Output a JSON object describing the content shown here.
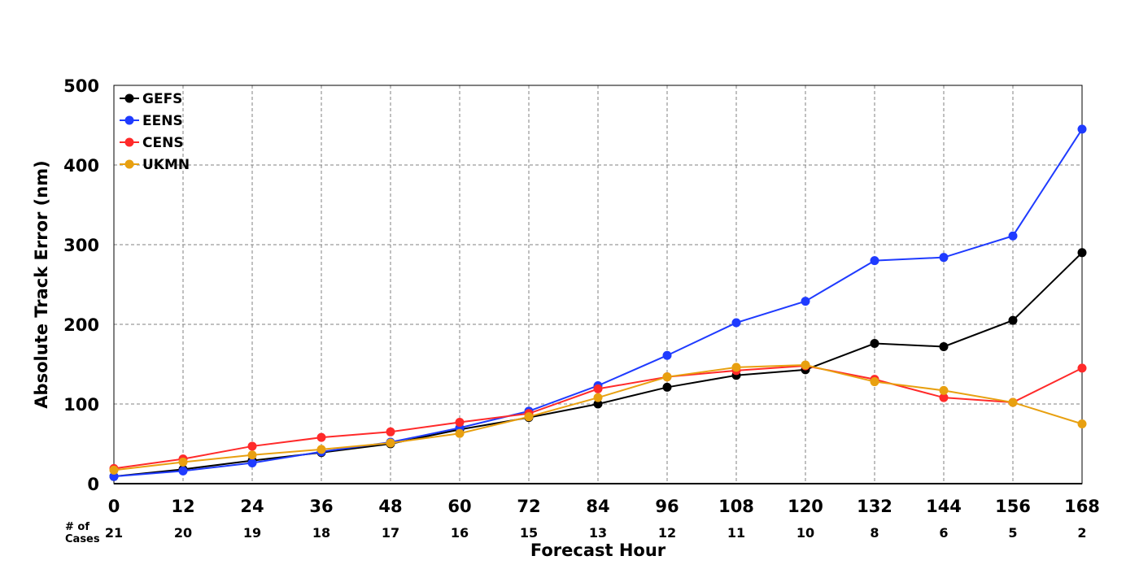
{
  "chart_data": {
    "type": "line",
    "xlabel": "Forecast Hour",
    "ylabel": "Absolute Track Error (nm)",
    "x": [
      0,
      12,
      24,
      36,
      48,
      60,
      72,
      84,
      96,
      108,
      120,
      132,
      144,
      156,
      168
    ],
    "xlim": [
      0,
      168
    ],
    "ylim": [
      0,
      500
    ],
    "yticks": [
      0,
      100,
      200,
      300,
      400,
      500
    ],
    "grid": true,
    "legend_position": "top-left",
    "cases_label": "# of\nCases",
    "cases": [
      21,
      20,
      19,
      18,
      17,
      16,
      15,
      13,
      12,
      11,
      10,
      8,
      6,
      5,
      2
    ],
    "series": [
      {
        "name": "GEFS",
        "color": "#000000",
        "values": [
          9,
          18,
          29,
          39,
          50,
          68,
          83,
          100,
          121,
          136,
          143,
          176,
          172,
          205,
          290
        ]
      },
      {
        "name": "EENS",
        "color": "#1f3bff",
        "values": [
          9,
          16,
          26,
          40,
          52,
          70,
          91,
          123,
          161,
          202,
          229,
          280,
          284,
          311,
          445
        ]
      },
      {
        "name": "CENS",
        "color": "#ff2a2a",
        "values": [
          19,
          31,
          47,
          58,
          65,
          77,
          88,
          119,
          134,
          142,
          148,
          131,
          108,
          102,
          145
        ]
      },
      {
        "name": "UKMN",
        "color": "#e8a010",
        "values": [
          17,
          27,
          36,
          43,
          51,
          63,
          84,
          108,
          134,
          146,
          149,
          128,
          117,
          102,
          75
        ]
      }
    ]
  }
}
